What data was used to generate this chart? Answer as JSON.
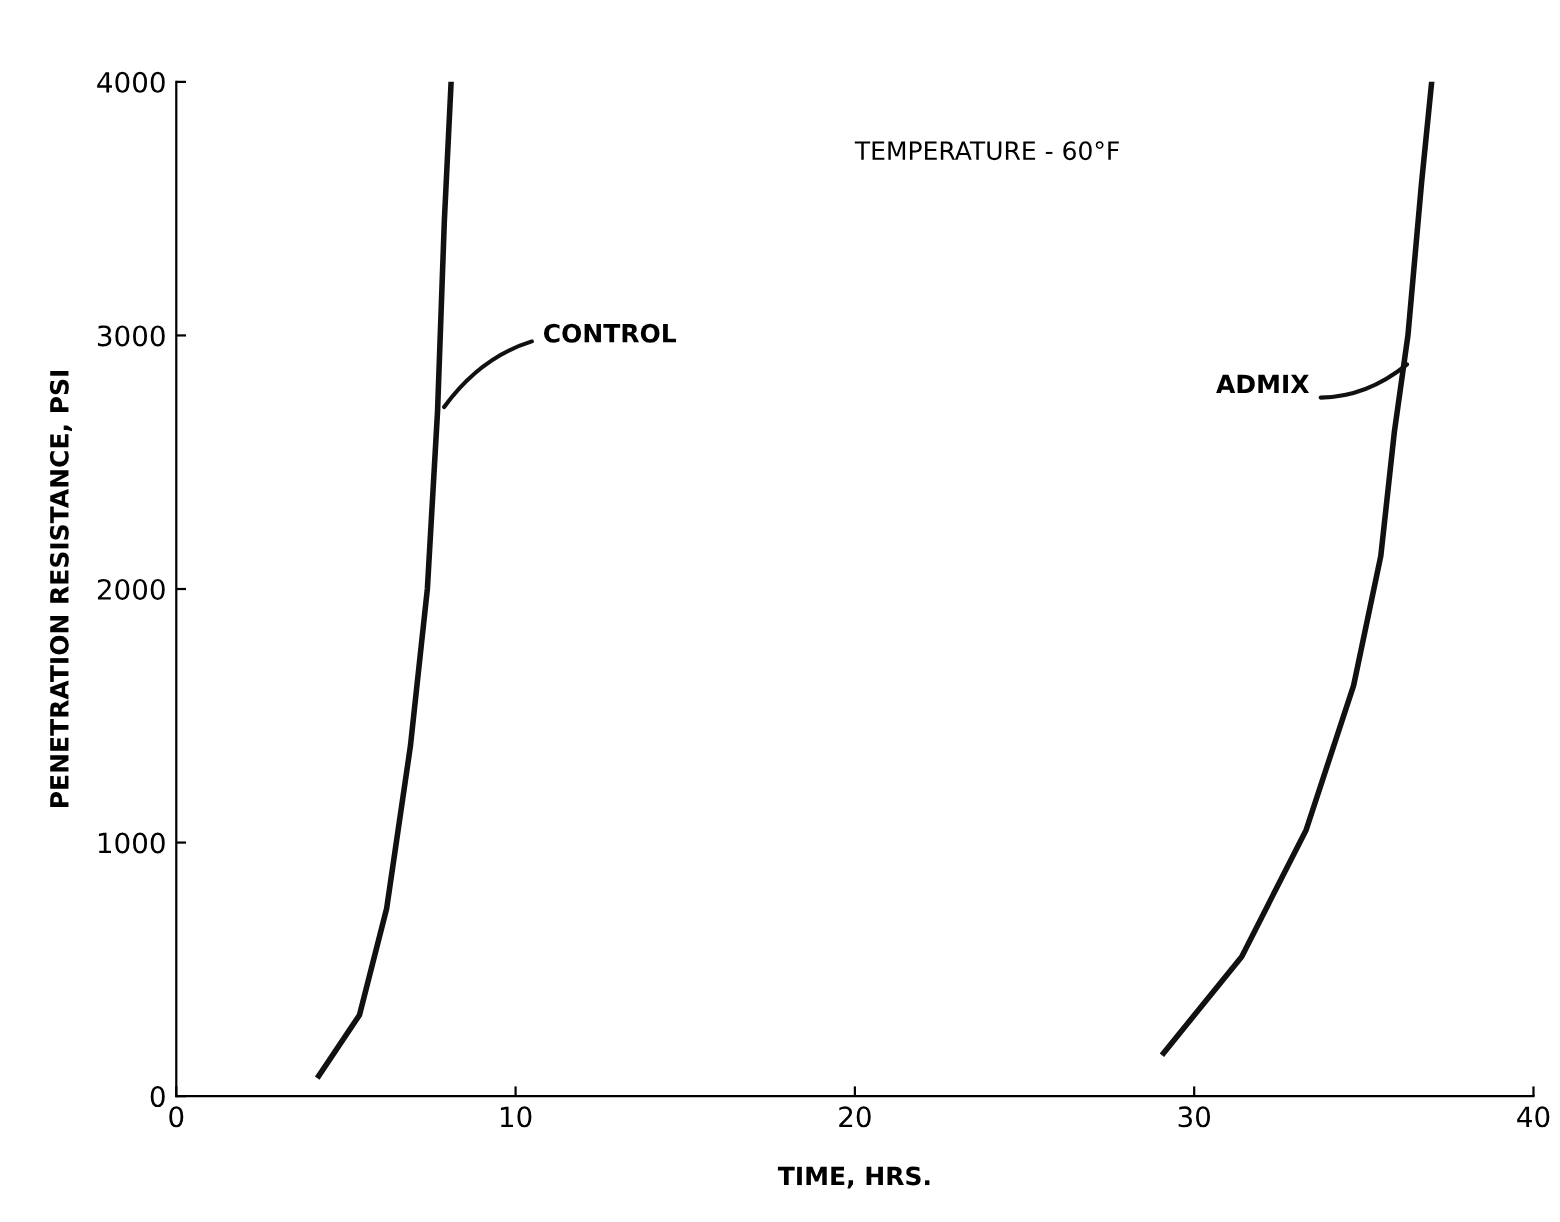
{
  "chart_data": {
    "type": "line",
    "xlabel": "TIME, HRS.",
    "ylabel": "PENETRATION RESISTANCE, PSI",
    "xlim": [
      0,
      40
    ],
    "xticks": [
      0,
      10,
      20,
      30,
      40
    ],
    "ylim": [
      0,
      4000
    ],
    "yticks": [
      0,
      1000,
      2000,
      3000,
      4000
    ],
    "grid": false,
    "legend": false,
    "marker": "none",
    "line_style": "solid",
    "series": [
      {
        "color": "#111111",
        "x": [
          4.2,
          5.4,
          6.2,
          6.9,
          7.4,
          7.7,
          7.9,
          8.1
        ],
        "values": [
          80,
          320,
          740,
          1380,
          2000,
          2700,
          3450,
          4000
        ]
      },
      {
        "color": "#111111",
        "x": [
          29.1,
          31.4,
          33.3,
          34.7,
          35.5,
          35.9,
          36.3,
          36.7,
          37.0
        ],
        "values": [
          170,
          550,
          1050,
          1620,
          2130,
          2620,
          3000,
          3600,
          4000
        ]
      }
    ],
    "annotations": [
      {
        "text": "CONTROL",
        "x": 7.8,
        "y": 2700
      },
      {
        "text": "ADMIX",
        "x": 36.4,
        "y": 2900
      },
      "TEMPERATURE - 60°F"
    ]
  }
}
